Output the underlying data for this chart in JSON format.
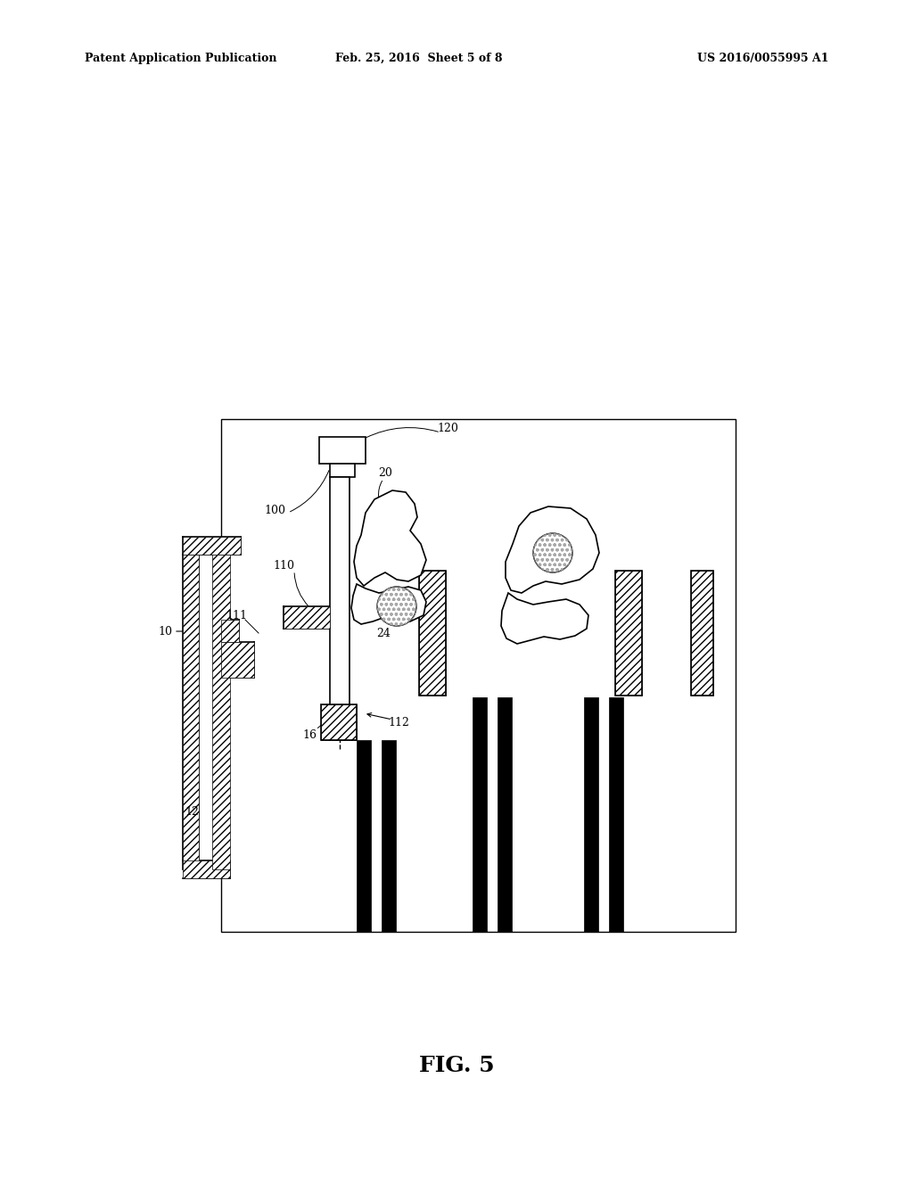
{
  "bg_color": "#ffffff",
  "header_left": "Patent Application Publication",
  "header_center": "Feb. 25, 2016  Sheet 5 of 8",
  "header_right": "US 2016/0055995 A1",
  "fig_label": "FIG. 5",
  "label_fs": 9,
  "header_fs": 9,
  "fig_label_fs": 18
}
